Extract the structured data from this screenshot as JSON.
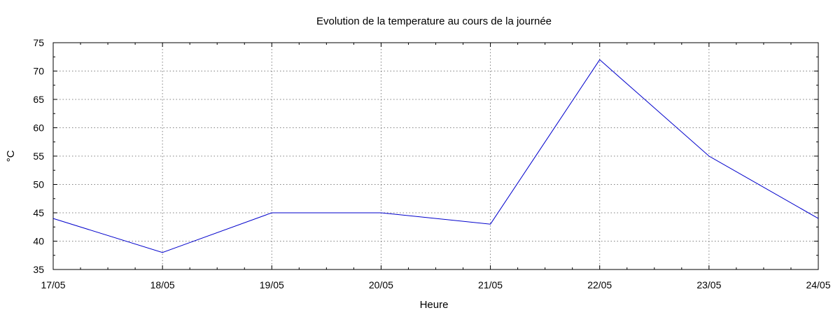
{
  "chart_data": {
    "type": "line",
    "title": "Evolution de la temperature au cours de la journée",
    "xlabel": "Heure",
    "ylabel": "°C",
    "categories": [
      "17/05",
      "18/05",
      "19/05",
      "20/05",
      "21/05",
      "22/05",
      "23/05",
      "24/05"
    ],
    "series": [
      {
        "values": [
          44,
          38,
          45,
          45,
          43,
          72,
          55,
          44
        ],
        "color": "#0000cc"
      }
    ],
    "ylim": [
      35,
      75
    ],
    "yticks": [
      35,
      40,
      45,
      50,
      55,
      60,
      65,
      70,
      75
    ],
    "grid": true,
    "legend": "none"
  }
}
